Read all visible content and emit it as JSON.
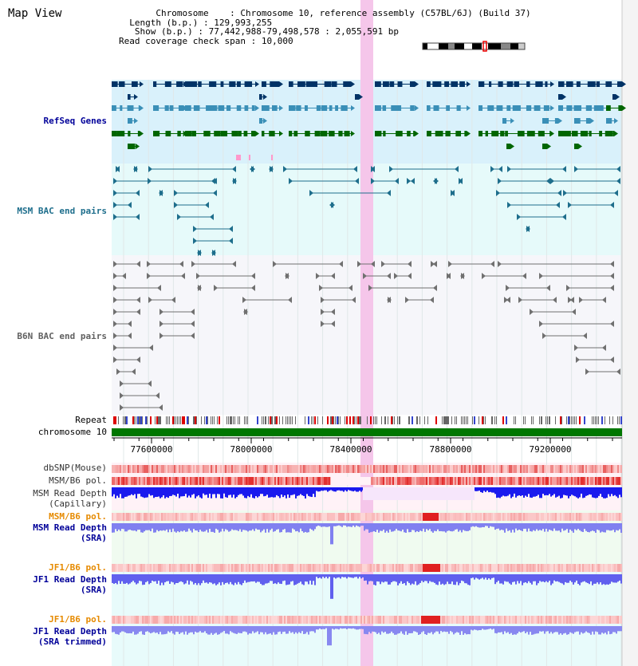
{
  "app_title": "Map View",
  "header": {
    "chromosome_label": "Chromosome",
    "chromosome_value": "Chromosome 10, reference assembly (C57BL/6J) (Build 37)",
    "length_label": "Length (b.p.)",
    "length_value": "129,993,255",
    "show_label": "Show (b.p.)",
    "show_value": "77,442,988-79,498,578 : 2,055,591 bp",
    "coverage_label": "Read coverage check span",
    "coverage_value": "10,000"
  },
  "tracks": {
    "refseq": "RefSeq Genes",
    "msm_bac": "MSM BAC end pairs",
    "b6n_bac": "B6N BAC end pairs",
    "repeat": "Repeat",
    "chromosome": "chromosome 10",
    "dbsnp": "dbSNP(Mouse)",
    "msm_b6_pol": "MSM/B6 pol.",
    "msm_read_cap_1": "MSM Read Depth",
    "msm_read_cap_2": "(Capillary)",
    "msm_b6_pol_sra": "MSM/B6 pol.",
    "msm_read_sra_1": "MSM Read Depth",
    "msm_read_sra_2": "(SRA)",
    "jf1_b6_pol": "JF1/B6 pol.",
    "jf1_read_sra_1": "JF1 Read Depth",
    "jf1_read_sra_2": "(SRA)",
    "jf1_b6_pol_trim": "JF1/B6 pol.",
    "jf1_read_trim_1": "JF1 Read Depth",
    "jf1_read_trim_2": "(SRA trimmed)"
  },
  "axis": {
    "ticks": [
      "77600000",
      "78000000",
      "78400000",
      "78800000",
      "79200000"
    ]
  },
  "colors": {
    "refseq_dark": "#003366",
    "refseq_mid": "#3a8fb7",
    "refseq_green": "#006600",
    "msm_bac": "#1e6e8c",
    "b6n_bac": "#707070",
    "highlight": "#f5c6ea",
    "label_blue": "#000099",
    "label_teal": "#1e6e8c",
    "label_orange": "#e68a00"
  }
}
